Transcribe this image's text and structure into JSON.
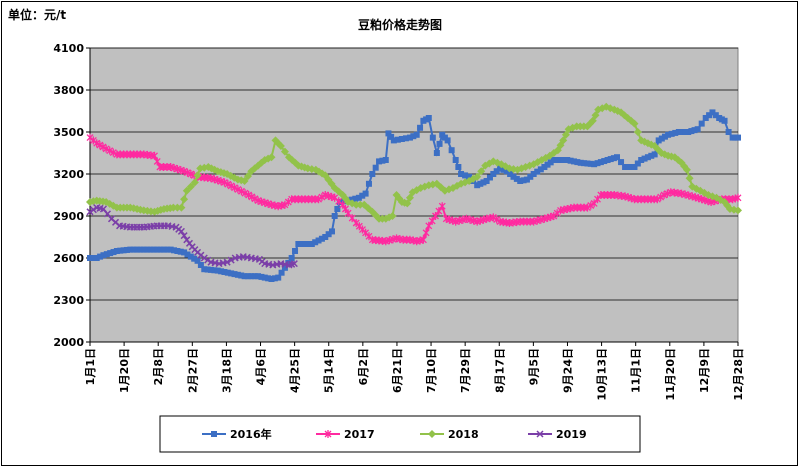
{
  "unit_label": "单位：元/t",
  "chart_data": {
    "type": "line",
    "title": "豆粕价格走势图",
    "ylabel": "单位：元/t",
    "ylim": [
      2000,
      4100
    ],
    "yticks": [
      2000,
      2300,
      2600,
      2900,
      3200,
      3500,
      3800,
      4100
    ],
    "grid": "horizontal",
    "legend_position": "bottom",
    "background": "#c0c0c0",
    "x_tick_labels": [
      "1月1日",
      "1月20日",
      "2月8日",
      "2月27日",
      "3月18日",
      "4月6日",
      "4月25日",
      "5月14日",
      "6月2日",
      "6月21日",
      "7月10日",
      "7月29日",
      "8月17日",
      "9月5日",
      "9月24日",
      "10月13日",
      "11月1日",
      "11月20日",
      "12月9日",
      "12月28日"
    ],
    "series": [
      {
        "name": "2016年",
        "color": "#3c6fc4",
        "marker": "square",
        "points": [
          [
            0,
            2600
          ],
          [
            5,
            2600
          ],
          [
            10,
            2620
          ],
          [
            20,
            2650
          ],
          [
            30,
            2660
          ],
          [
            45,
            2660
          ],
          [
            60,
            2660
          ],
          [
            70,
            2640
          ],
          [
            80,
            2580
          ],
          [
            85,
            2520
          ],
          [
            95,
            2510
          ],
          [
            105,
            2490
          ],
          [
            115,
            2470
          ],
          [
            125,
            2470
          ],
          [
            135,
            2450
          ],
          [
            140,
            2460
          ],
          [
            145,
            2530
          ],
          [
            150,
            2600
          ],
          [
            155,
            2700
          ],
          [
            165,
            2700
          ],
          [
            175,
            2750
          ],
          [
            180,
            2790
          ],
          [
            182,
            2900
          ],
          [
            186,
            3000
          ],
          [
            192,
            3010
          ],
          [
            200,
            3030
          ],
          [
            205,
            3060
          ],
          [
            210,
            3200
          ],
          [
            215,
            3290
          ],
          [
            220,
            3300
          ],
          [
            222,
            3490
          ],
          [
            226,
            3440
          ],
          [
            232,
            3450
          ],
          [
            238,
            3460
          ],
          [
            243,
            3480
          ],
          [
            248,
            3580
          ],
          [
            252,
            3600
          ],
          [
            255,
            3460
          ],
          [
            258,
            3350
          ],
          [
            262,
            3480
          ],
          [
            266,
            3440
          ],
          [
            272,
            3300
          ],
          [
            276,
            3200
          ],
          [
            282,
            3180
          ],
          [
            288,
            3120
          ],
          [
            295,
            3150
          ],
          [
            300,
            3200
          ],
          [
            305,
            3240
          ],
          [
            310,
            3220
          ],
          [
            315,
            3180
          ],
          [
            320,
            3150
          ],
          [
            325,
            3160
          ],
          [
            330,
            3200
          ],
          [
            338,
            3250
          ],
          [
            345,
            3300
          ],
          [
            355,
            3300
          ],
          [
            365,
            3280
          ],
          [
            375,
            3270
          ],
          [
            385,
            3300
          ],
          [
            392,
            3320
          ],
          [
            398,
            3250
          ],
          [
            405,
            3250
          ],
          [
            410,
            3300
          ],
          [
            415,
            3320
          ],
          [
            420,
            3340
          ],
          [
            423,
            3440
          ],
          [
            430,
            3480
          ],
          [
            438,
            3500
          ],
          [
            445,
            3500
          ],
          [
            452,
            3520
          ],
          [
            458,
            3600
          ],
          [
            463,
            3640
          ],
          [
            468,
            3600
          ],
          [
            472,
            3580
          ],
          [
            475,
            3500
          ],
          [
            478,
            3460
          ],
          [
            482,
            3460
          ]
        ]
      },
      {
        "name": "2017",
        "color": "#ff2aa0",
        "marker": "star",
        "points": [
          [
            0,
            3460
          ],
          [
            5,
            3420
          ],
          [
            12,
            3380
          ],
          [
            20,
            3340
          ],
          [
            30,
            3340
          ],
          [
            40,
            3340
          ],
          [
            48,
            3330
          ],
          [
            52,
            3250
          ],
          [
            60,
            3250
          ],
          [
            70,
            3220
          ],
          [
            80,
            3180
          ],
          [
            90,
            3170
          ],
          [
            100,
            3140
          ],
          [
            110,
            3090
          ],
          [
            118,
            3050
          ],
          [
            125,
            3010
          ],
          [
            135,
            2980
          ],
          [
            140,
            2970
          ],
          [
            145,
            2980
          ],
          [
            150,
            3020
          ],
          [
            160,
            3020
          ],
          [
            170,
            3020
          ],
          [
            175,
            3050
          ],
          [
            182,
            3030
          ],
          [
            188,
            2980
          ],
          [
            192,
            2920
          ],
          [
            198,
            2850
          ],
          [
            205,
            2780
          ],
          [
            210,
            2730
          ],
          [
            220,
            2720
          ],
          [
            228,
            2740
          ],
          [
            233,
            2730
          ],
          [
            238,
            2730
          ],
          [
            243,
            2720
          ],
          [
            248,
            2730
          ],
          [
            252,
            2830
          ],
          [
            257,
            2900
          ],
          [
            262,
            2970
          ],
          [
            265,
            2880
          ],
          [
            272,
            2860
          ],
          [
            280,
            2880
          ],
          [
            288,
            2860
          ],
          [
            295,
            2880
          ],
          [
            300,
            2890
          ],
          [
            305,
            2860
          ],
          [
            312,
            2850
          ],
          [
            320,
            2860
          ],
          [
            330,
            2860
          ],
          [
            338,
            2880
          ],
          [
            345,
            2900
          ],
          [
            350,
            2940
          ],
          [
            360,
            2960
          ],
          [
            370,
            2960
          ],
          [
            375,
            2990
          ],
          [
            380,
            3050
          ],
          [
            390,
            3050
          ],
          [
            398,
            3040
          ],
          [
            405,
            3020
          ],
          [
            415,
            3020
          ],
          [
            422,
            3020
          ],
          [
            427,
            3050
          ],
          [
            432,
            3070
          ],
          [
            440,
            3060
          ],
          [
            448,
            3040
          ],
          [
            455,
            3020
          ],
          [
            462,
            3000
          ],
          [
            470,
            3020
          ],
          [
            478,
            3020
          ],
          [
            482,
            3030
          ]
        ]
      },
      {
        "name": "2018",
        "color": "#92c24a",
        "marker": "diamond",
        "points": [
          [
            0,
            3000
          ],
          [
            5,
            3010
          ],
          [
            12,
            3000
          ],
          [
            20,
            2960
          ],
          [
            30,
            2960
          ],
          [
            40,
            2940
          ],
          [
            48,
            2930
          ],
          [
            55,
            2950
          ],
          [
            62,
            2960
          ],
          [
            68,
            2960
          ],
          [
            72,
            3080
          ],
          [
            78,
            3140
          ],
          [
            82,
            3240
          ],
          [
            88,
            3250
          ],
          [
            95,
            3220
          ],
          [
            102,
            3200
          ],
          [
            110,
            3160
          ],
          [
            115,
            3150
          ],
          [
            120,
            3220
          ],
          [
            125,
            3260
          ],
          [
            130,
            3300
          ],
          [
            135,
            3320
          ],
          [
            138,
            3440
          ],
          [
            142,
            3400
          ],
          [
            148,
            3320
          ],
          [
            155,
            3260
          ],
          [
            162,
            3240
          ],
          [
            168,
            3230
          ],
          [
            175,
            3190
          ],
          [
            182,
            3100
          ],
          [
            188,
            3050
          ],
          [
            192,
            3000
          ],
          [
            198,
            2980
          ],
          [
            204,
            2980
          ],
          [
            210,
            2930
          ],
          [
            215,
            2880
          ],
          [
            220,
            2880
          ],
          [
            225,
            2900
          ],
          [
            228,
            3050
          ],
          [
            232,
            3000
          ],
          [
            236,
            2990
          ],
          [
            240,
            3070
          ],
          [
            246,
            3100
          ],
          [
            252,
            3120
          ],
          [
            258,
            3130
          ],
          [
            264,
            3080
          ],
          [
            270,
            3100
          ],
          [
            276,
            3130
          ],
          [
            282,
            3150
          ],
          [
            288,
            3180
          ],
          [
            294,
            3260
          ],
          [
            300,
            3290
          ],
          [
            306,
            3270
          ],
          [
            312,
            3240
          ],
          [
            318,
            3230
          ],
          [
            324,
            3250
          ],
          [
            330,
            3270
          ],
          [
            336,
            3300
          ],
          [
            342,
            3330
          ],
          [
            348,
            3370
          ],
          [
            352,
            3440
          ],
          [
            356,
            3520
          ],
          [
            362,
            3540
          ],
          [
            370,
            3540
          ],
          [
            374,
            3580
          ],
          [
            378,
            3660
          ],
          [
            384,
            3680
          ],
          [
            390,
            3660
          ],
          [
            395,
            3640
          ],
          [
            400,
            3600
          ],
          [
            405,
            3560
          ],
          [
            410,
            3440
          ],
          [
            415,
            3420
          ],
          [
            420,
            3400
          ],
          [
            425,
            3350
          ],
          [
            430,
            3330
          ],
          [
            435,
            3320
          ],
          [
            440,
            3280
          ],
          [
            444,
            3230
          ],
          [
            448,
            3110
          ],
          [
            454,
            3080
          ],
          [
            460,
            3050
          ],
          [
            466,
            3030
          ],
          [
            472,
            3000
          ],
          [
            476,
            2950
          ],
          [
            482,
            2940
          ]
        ]
      },
      {
        "name": "2019",
        "color": "#7b3fa8",
        "marker": "x",
        "points": [
          [
            0,
            2930
          ],
          [
            5,
            2960
          ],
          [
            10,
            2950
          ],
          [
            16,
            2880
          ],
          [
            22,
            2830
          ],
          [
            30,
            2820
          ],
          [
            40,
            2820
          ],
          [
            50,
            2830
          ],
          [
            58,
            2830
          ],
          [
            64,
            2820
          ],
          [
            68,
            2790
          ],
          [
            72,
            2730
          ],
          [
            76,
            2680
          ],
          [
            80,
            2640
          ],
          [
            85,
            2600
          ],
          [
            90,
            2570
          ],
          [
            96,
            2560
          ],
          [
            102,
            2570
          ],
          [
            108,
            2600
          ],
          [
            114,
            2610
          ],
          [
            120,
            2600
          ],
          [
            126,
            2590
          ],
          [
            130,
            2560
          ],
          [
            136,
            2550
          ],
          [
            142,
            2560
          ],
          [
            148,
            2550
          ],
          [
            152,
            2560
          ]
        ]
      }
    ]
  }
}
